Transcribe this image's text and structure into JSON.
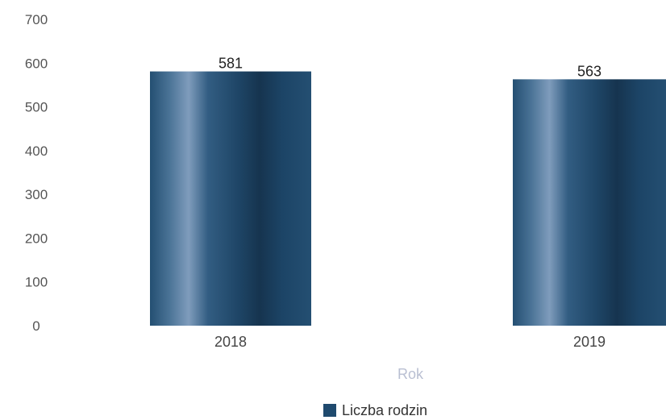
{
  "chart_data": {
    "type": "bar",
    "categories": [
      "2018",
      "2019"
    ],
    "series": [
      {
        "name": "Liczba rodzin",
        "values": [
          581,
          563
        ],
        "color": "#1f4a6e"
      }
    ],
    "data_labels": [
      "581",
      "563"
    ],
    "xlabel": "Rok",
    "ylabel": "",
    "ylim": [
      0,
      700
    ],
    "yticks": [
      "0",
      "100",
      "200",
      "300",
      "400",
      "500",
      "600",
      "700"
    ],
    "grid": false,
    "legend": {
      "position": "bottom",
      "entries": [
        "Liczba rodzin"
      ]
    }
  }
}
